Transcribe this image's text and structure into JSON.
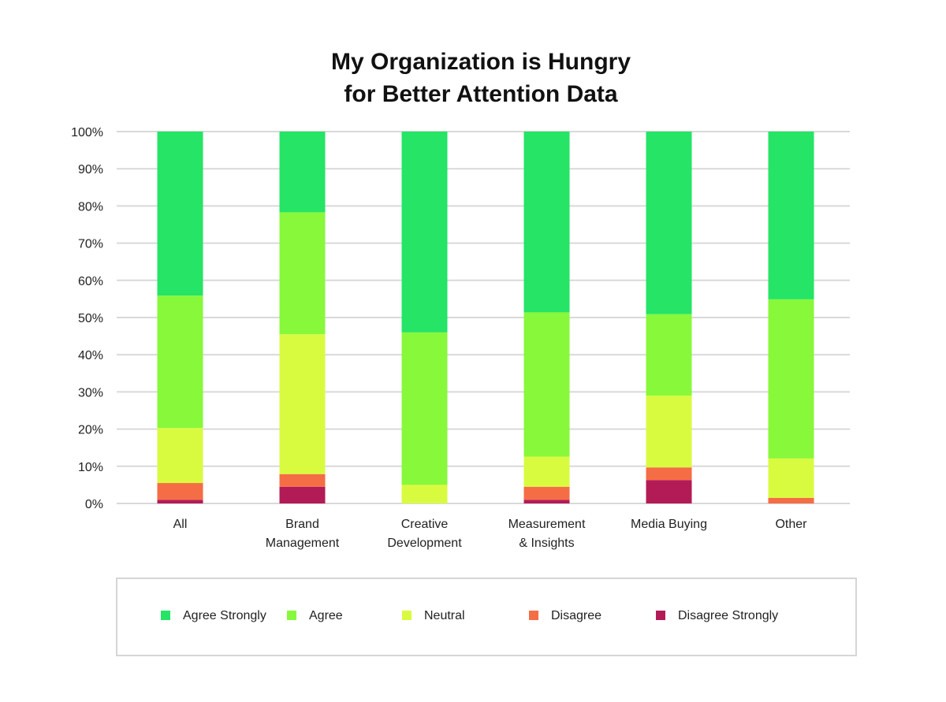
{
  "chart_data": {
    "type": "bar",
    "stacked": true,
    "normalized_percent": true,
    "title_lines": [
      "My Organization is Hungry",
      "for Better Attention Data"
    ],
    "xlabel": "",
    "ylabel": "",
    "ylim": [
      0,
      100
    ],
    "y_ticks": [
      "0%",
      "10%",
      "20%",
      "30%",
      "40%",
      "50%",
      "60%",
      "70%",
      "80%",
      "90%",
      "100%"
    ],
    "grid": true,
    "legend_position": "bottom",
    "categories": [
      {
        "lines": [
          "All"
        ]
      },
      {
        "lines": [
          "Brand",
          "Management"
        ]
      },
      {
        "lines": [
          "Creative",
          "Development"
        ]
      },
      {
        "lines": [
          "Measurement",
          "& Insights"
        ]
      },
      {
        "lines": [
          "Media Buying"
        ]
      },
      {
        "lines": [
          "Other"
        ]
      }
    ],
    "series": [
      {
        "name": "Disagree Strongly",
        "color": "#b31b56",
        "values": [
          1,
          4.5,
          0,
          1,
          6.3,
          0
        ]
      },
      {
        "name": "Disagree",
        "color": "#f56d45",
        "values": [
          4.5,
          3.4,
          0,
          3.5,
          3.4,
          1.5
        ]
      },
      {
        "name": "Neutral",
        "color": "#d9fb3f",
        "values": [
          14.8,
          37.6,
          5,
          8.1,
          19.3,
          10.6
        ]
      },
      {
        "name": "Agree",
        "color": "#88f83b",
        "values": [
          35.6,
          32.8,
          41,
          38.8,
          21.9,
          42.8
        ]
      },
      {
        "name": "Agree Strongly",
        "color": "#25e466",
        "values": [
          44.1,
          21.7,
          54,
          48.6,
          49.1,
          45.1
        ]
      }
    ],
    "legend_order": [
      "Agree Strongly",
      "Agree",
      "Neutral",
      "Disagree",
      "Disagree Strongly"
    ]
  }
}
